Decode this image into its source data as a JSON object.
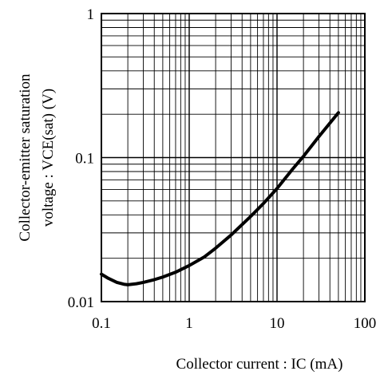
{
  "chart_data": {
    "type": "line",
    "title": "",
    "xlabel": "Collector current : IC (mA)",
    "ylabel_lines": [
      "Collector-emitter saturation",
      "voltage : VCE(sat) (V)"
    ],
    "x_scale": "log",
    "y_scale": "log",
    "xlim": [
      0.1,
      100
    ],
    "ylim": [
      0.01,
      1
    ],
    "x_ticks": [
      {
        "value": 0.1,
        "label": "0.1"
      },
      {
        "value": 1,
        "label": "1"
      },
      {
        "value": 10,
        "label": "10"
      },
      {
        "value": 100,
        "label": "100"
      }
    ],
    "y_ticks": [
      {
        "value": 0.01,
        "label": "0.01"
      },
      {
        "value": 0.1,
        "label": "0.1"
      },
      {
        "value": 1,
        "label": "1"
      }
    ],
    "grid": true,
    "grid_minor": true,
    "series": [
      {
        "x": [
          0.1,
          0.12,
          0.15,
          0.18,
          0.2,
          0.25,
          0.3,
          0.4,
          0.5,
          0.7,
          1,
          1.5,
          2,
          3,
          5,
          7,
          10,
          15,
          20,
          30,
          50
        ],
        "y": [
          0.0155,
          0.0145,
          0.0136,
          0.0132,
          0.0131,
          0.0133,
          0.0136,
          0.0142,
          0.0148,
          0.016,
          0.0178,
          0.0205,
          0.0235,
          0.029,
          0.039,
          0.048,
          0.061,
          0.083,
          0.102,
          0.14,
          0.205
        ],
        "color": "#000000"
      }
    ]
  }
}
